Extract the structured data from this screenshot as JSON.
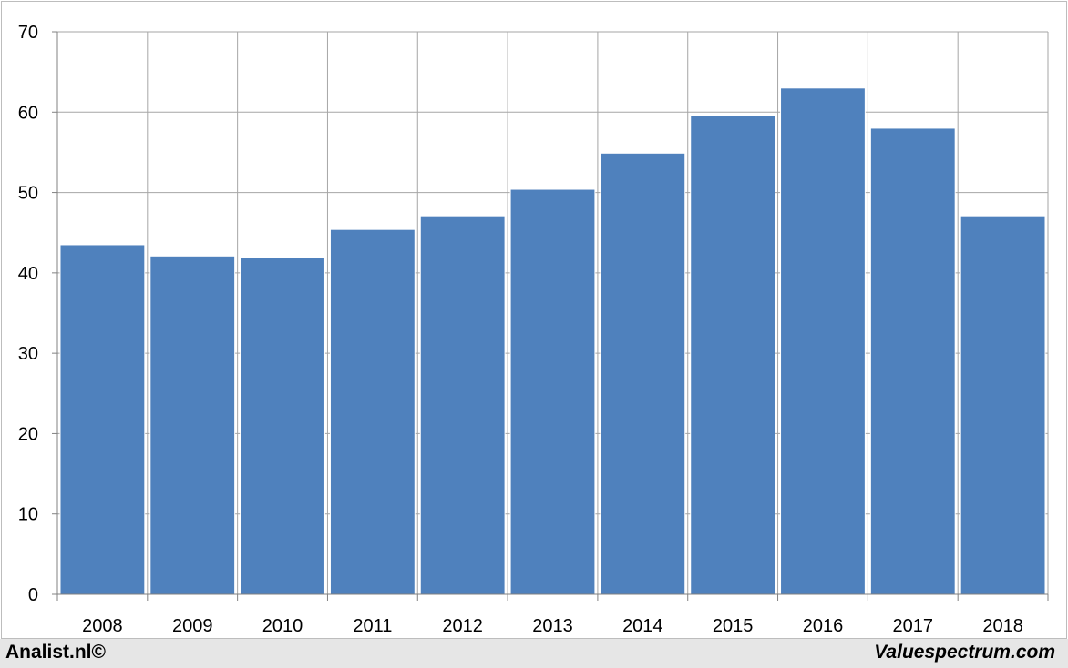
{
  "chart_data": {
    "type": "bar",
    "categories": [
      "2008",
      "2009",
      "2010",
      "2011",
      "2012",
      "2013",
      "2014",
      "2015",
      "2016",
      "2017",
      "2018"
    ],
    "values": [
      43.5,
      42.1,
      41.9,
      45.4,
      47.1,
      50.4,
      54.9,
      59.6,
      63.0,
      58.0,
      47.1
    ],
    "ylim": [
      0,
      70
    ],
    "yticks": [
      "0",
      "10",
      "20",
      "30",
      "40",
      "50",
      "60",
      "70"
    ],
    "grid": true,
    "bar_color": "#4f81bd",
    "grid_color": "#a6a6a6"
  },
  "footer": {
    "left": "Analist.nl©",
    "right": "Valuespectrum.com"
  }
}
